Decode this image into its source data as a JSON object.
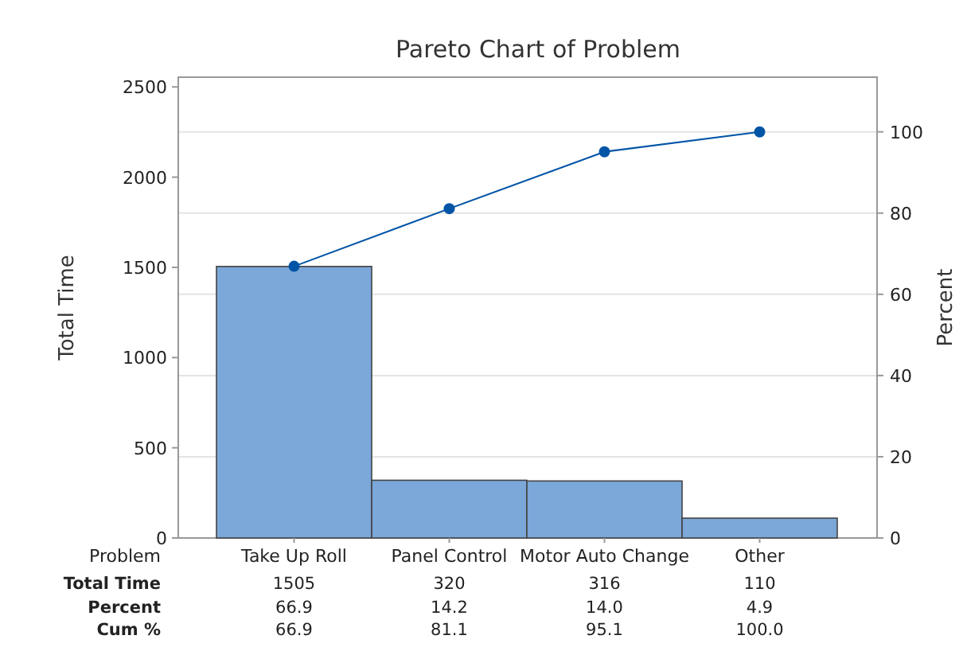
{
  "chart_data": {
    "type": "bar",
    "title": "Pareto Chart of Problem",
    "xlabel": "Problem",
    "ylabel": "Total Time",
    "y2label": "Percent",
    "categories": [
      "Take Up Roll",
      "Panel Control",
      "Motor Auto Change",
      "Other"
    ],
    "series": [
      {
        "color": "#7ba7d9",
        "values": [
          1505,
          320,
          316,
          110
        ],
        "value_labels": [
          "1505",
          "320",
          "316",
          "110"
        ]
      },
      {
        "type": "line",
        "axis": "y2",
        "color": "#0054a6",
        "values": [
          66.9,
          81.1,
          95.1,
          100.0
        ],
        "value_labels": [
          "66.9",
          "81.1",
          "95.1",
          "100.0"
        ]
      }
    ],
    "ylim": [
      0,
      2554
    ],
    "yticks": [
      0,
      500,
      1000,
      1500,
      2000,
      2500
    ],
    "y2lim": [
      0,
      113.46
    ],
    "y2ticks": [
      0,
      20,
      40,
      60,
      80,
      100
    ],
    "grid": "y2",
    "marker": "circle",
    "annotations": [
      "Total Time",
      "Percent",
      "Cum %",
      "66.9",
      "14.2",
      "14.0",
      "4.9"
    ]
  }
}
